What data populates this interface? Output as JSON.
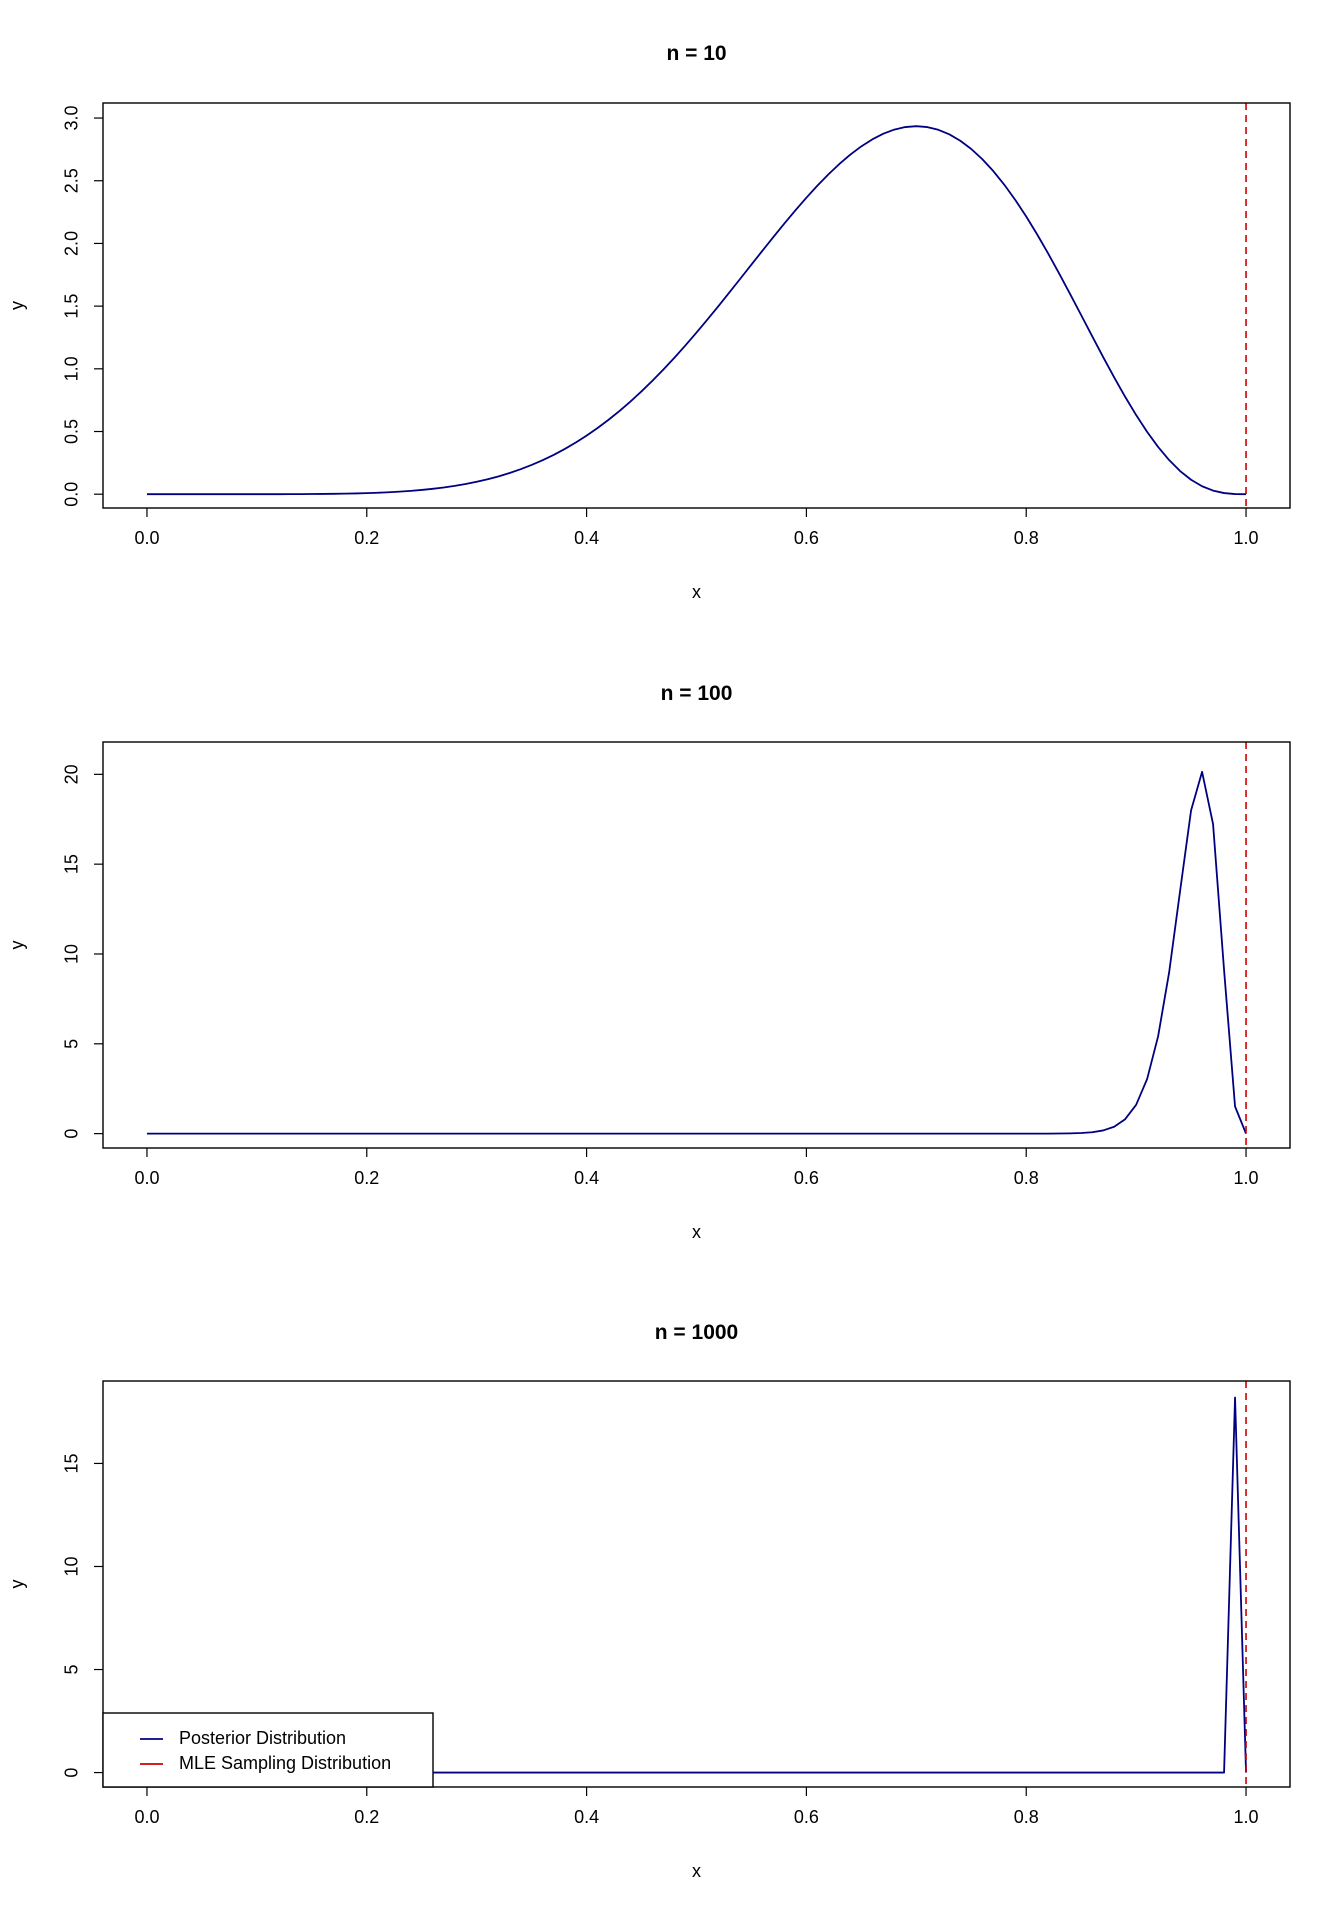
{
  "colors": {
    "posterior": "#000080",
    "mle": "#cc0000",
    "axis": "#000000",
    "background": "#ffffff"
  },
  "legend": {
    "placement": "bottom-left of third panel",
    "entries": [
      {
        "label": "Posterior Distribution",
        "color": "#000080"
      },
      {
        "label": "MLE Sampling Distribution",
        "color": "#cc0000"
      }
    ]
  },
  "chart_data": [
    {
      "type": "line",
      "title": "n = 10",
      "xlabel": "x",
      "ylabel": "y",
      "xlim": [
        -0.04,
        1.04
      ],
      "ylim": [
        -0.11,
        3.12
      ],
      "xticks": [
        "0.0",
        "0.2",
        "0.4",
        "0.6",
        "0.8",
        "1.0"
      ],
      "xtick_values": [
        0,
        0.2,
        0.4,
        0.6,
        0.8,
        1.0
      ],
      "yticks": [
        "0.0",
        "0.5",
        "1.0",
        "1.5",
        "2.0",
        "2.5",
        "3.0"
      ],
      "ytick_values": [
        0,
        0.5,
        1.0,
        1.5,
        2.0,
        2.5,
        3.0
      ],
      "grid": false,
      "series": [
        {
          "name": "Posterior Distribution",
          "color": "#000080",
          "x_range": [
            0,
            1
          ],
          "points": 101,
          "density": {
            "kind": "beta",
            "a": 8,
            "b": 4
          }
        },
        {
          "name": "MLE Sampling Distribution",
          "color": "#cc0000",
          "style": "dashed-vertical",
          "x": 1.0
        }
      ]
    },
    {
      "type": "line",
      "title": "n = 100",
      "xlabel": "x",
      "ylabel": "y",
      "xlim": [
        -0.04,
        1.04
      ],
      "ylim": [
        -0.8,
        21.8
      ],
      "xticks": [
        "0.0",
        "0.2",
        "0.4",
        "0.6",
        "0.8",
        "1.0"
      ],
      "xtick_values": [
        0,
        0.2,
        0.4,
        0.6,
        0.8,
        1.0
      ],
      "yticks": [
        "0",
        "5",
        "10",
        "15",
        "20"
      ],
      "ytick_values": [
        0,
        5,
        10,
        15,
        20
      ],
      "grid": false,
      "series": [
        {
          "name": "Posterior Distribution",
          "color": "#000080",
          "x_range": [
            0,
            1
          ],
          "points": 101,
          "density": {
            "kind": "beta",
            "a": 97,
            "b": 5
          }
        },
        {
          "name": "MLE Sampling Distribution",
          "color": "#cc0000",
          "style": "dashed-vertical",
          "x": 1.0
        }
      ]
    },
    {
      "type": "line",
      "title": "n = 1000",
      "xlabel": "x",
      "ylabel": "y",
      "xlim": [
        -0.04,
        1.04
      ],
      "ylim": [
        -0.7,
        19.0
      ],
      "xticks": [
        "0.0",
        "0.2",
        "0.4",
        "0.6",
        "0.8",
        "1.0"
      ],
      "xtick_values": [
        0,
        0.2,
        0.4,
        0.6,
        0.8,
        1.0
      ],
      "yticks": [
        "0",
        "5",
        "10",
        "15"
      ],
      "ytick_values": [
        0,
        5,
        10,
        15
      ],
      "grid": false,
      "series": [
        {
          "name": "Posterior Distribution",
          "color": "#000080",
          "x": [
            0,
            0.98,
            0.99,
            1.0
          ],
          "y": [
            0,
            0,
            18.2,
            0
          ]
        },
        {
          "name": "MLE Sampling Distribution",
          "color": "#cc0000",
          "style": "dashed-vertical",
          "x": 1.0
        }
      ]
    }
  ]
}
